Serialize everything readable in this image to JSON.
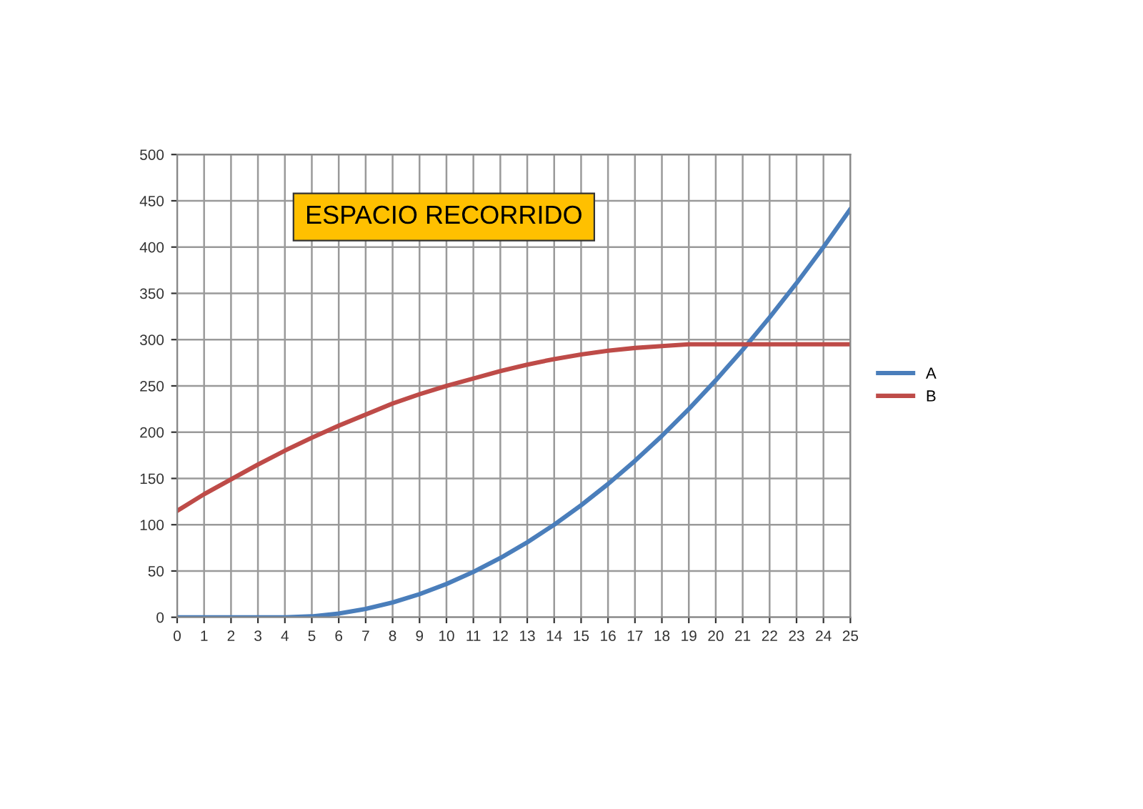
{
  "chart_data": {
    "type": "line",
    "title": "ESPACIO RECORRIDO",
    "x": [
      0,
      1,
      2,
      3,
      4,
      5,
      6,
      7,
      8,
      9,
      10,
      11,
      12,
      13,
      14,
      15,
      16,
      17,
      18,
      19,
      20,
      21,
      22,
      23,
      24,
      25
    ],
    "series": [
      {
        "name": "A",
        "color": "#4a7ebb",
        "values": [
          0,
          0,
          0,
          0,
          0,
          1,
          4,
          9,
          16,
          25,
          36,
          49,
          64,
          81,
          100,
          121,
          144,
          169,
          196,
          225,
          256,
          289,
          324,
          361,
          400,
          441
        ]
      },
      {
        "name": "B",
        "color": "#be4b48",
        "values": [
          115,
          133,
          149,
          165,
          180,
          194,
          207,
          219,
          231,
          241,
          250,
          258,
          266,
          273,
          279,
          284,
          288,
          291,
          293,
          295,
          295,
          295,
          295,
          295,
          295,
          295
        ]
      }
    ],
    "xlim": [
      0,
      25
    ],
    "xticks": [
      0,
      1,
      2,
      3,
      4,
      5,
      6,
      7,
      8,
      9,
      10,
      11,
      12,
      13,
      14,
      15,
      16,
      17,
      18,
      19,
      20,
      21,
      22,
      23,
      24,
      25
    ],
    "ylim": [
      0,
      500
    ],
    "yticks": [
      0,
      50,
      100,
      150,
      200,
      250,
      300,
      350,
      400,
      450,
      500
    ],
    "grid": true,
    "legend": "right",
    "marker": "none",
    "line_style": "solid"
  }
}
